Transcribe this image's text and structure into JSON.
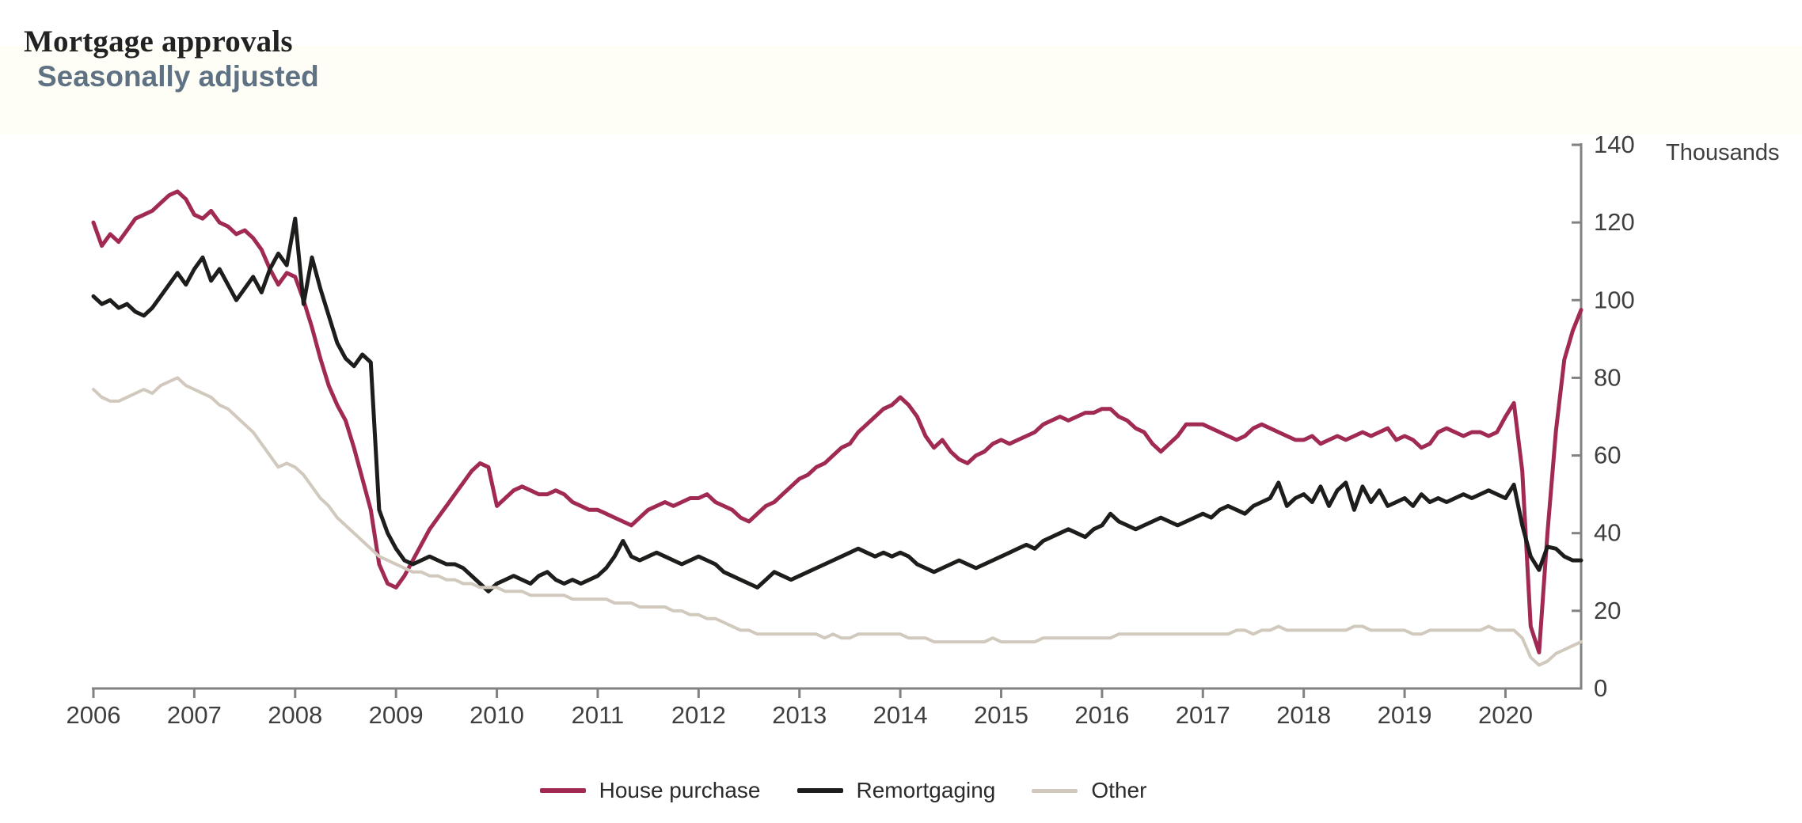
{
  "header": {
    "title": "Mortgage approvals",
    "subtitle": "Seasonally adjusted"
  },
  "chart_data": {
    "type": "line",
    "title": "Mortgage approvals",
    "subtitle": "Seasonally adjusted",
    "unit_label": "Thousands",
    "frequency": "monthly",
    "x_range_start": "2006-01",
    "x_range_end": "2020-10",
    "x_tick_labels": [
      "2006",
      "2007",
      "2008",
      "2009",
      "2010",
      "2011",
      "2012",
      "2013",
      "2014",
      "2015",
      "2016",
      "2017",
      "2018",
      "2019",
      "2020"
    ],
    "y_ticks": [
      0,
      20,
      40,
      60,
      80,
      100,
      120,
      140
    ],
    "ylim": [
      0,
      140
    ],
    "grid": false,
    "legend_position": "bottom",
    "axis_color": "#828282",
    "tick_label_color": "#3f3f3f",
    "series": [
      {
        "name": "House purchase",
        "color": "#a02a54",
        "stroke_width": 5,
        "values": [
          120,
          114,
          117,
          115,
          118,
          121,
          122,
          123,
          125,
          127,
          128,
          126,
          122,
          121,
          123,
          120,
          119,
          117,
          118,
          116,
          113,
          108,
          104,
          107,
          106,
          100,
          93,
          85,
          78,
          73,
          69,
          62,
          54,
          46,
          32,
          27,
          26,
          29,
          33,
          37,
          41,
          44,
          47,
          50,
          53,
          56,
          58,
          57,
          47,
          49,
          51,
          52,
          51,
          50,
          50,
          51,
          50,
          48,
          47,
          46,
          46,
          45,
          44,
          43,
          42,
          44,
          46,
          47,
          48,
          47,
          48,
          49,
          49,
          50,
          48,
          47,
          46,
          44,
          43,
          45,
          47,
          48,
          50,
          52,
          54,
          55,
          57,
          58,
          60,
          62,
          63,
          66,
          68,
          70,
          72,
          73,
          75,
          73,
          70,
          65,
          62,
          64,
          61,
          59,
          58,
          60,
          61,
          63,
          64,
          63,
          64,
          65,
          66,
          68,
          69,
          70,
          69,
          70,
          71,
          71,
          72,
          72,
          70,
          69,
          67,
          66,
          63,
          61,
          63,
          65,
          68,
          68,
          68,
          67,
          66,
          65,
          64,
          65,
          67,
          68,
          67,
          66,
          65,
          64,
          64,
          65,
          63,
          64,
          65,
          64,
          65,
          66,
          65,
          66,
          67,
          64,
          65,
          64,
          62,
          63,
          66,
          67,
          66,
          65,
          66,
          66,
          65,
          66,
          70,
          73.5,
          56,
          16,
          9.3,
          40,
          66.3,
          84.7,
          92.1,
          97.5
        ]
      },
      {
        "name": "Remortgaging",
        "color": "#1d1d1b",
        "stroke_width": 5,
        "values": [
          101,
          99,
          100,
          98,
          99,
          97,
          96,
          98,
          101,
          104,
          107,
          104,
          108,
          111,
          105,
          108,
          104,
          100,
          103,
          106,
          102,
          108,
          112,
          109,
          121,
          99,
          111,
          103,
          96,
          89,
          85,
          83,
          86,
          84,
          46,
          40,
          36,
          33,
          32,
          33,
          34,
          33,
          32,
          32,
          31,
          29,
          27,
          25,
          27,
          28,
          29,
          28,
          27,
          29,
          30,
          28,
          27,
          28,
          27,
          28,
          29,
          31,
          34,
          38,
          34,
          33,
          34,
          35,
          34,
          33,
          32,
          33,
          34,
          33,
          32,
          30,
          29,
          28,
          27,
          26,
          28,
          30,
          29,
          28,
          29,
          30,
          31,
          32,
          33,
          34,
          35,
          36,
          35,
          34,
          35,
          34,
          35,
          34,
          32,
          31,
          30,
          31,
          32,
          33,
          32,
          31,
          32,
          33,
          34,
          35,
          36,
          37,
          36,
          38,
          39,
          40,
          41,
          40,
          39,
          41,
          42,
          45,
          43,
          42,
          41,
          42,
          43,
          44,
          43,
          42,
          43,
          44,
          45,
          44,
          46,
          47,
          46,
          45,
          47,
          48,
          49,
          53,
          47,
          49,
          50,
          48,
          52,
          47,
          51,
          53,
          46,
          52,
          48,
          51,
          47,
          48,
          49,
          47,
          50,
          48,
          49,
          48,
          49,
          50,
          49,
          50,
          51,
          50,
          49,
          52.5,
          42,
          34,
          30.5,
          36.5,
          36,
          34,
          33,
          33
        ]
      },
      {
        "name": "Other",
        "color": "#d1c9bd",
        "stroke_width": 4,
        "values": [
          77,
          75,
          74,
          74,
          75,
          76,
          77,
          76,
          78,
          79,
          80,
          78,
          77,
          76,
          75,
          73,
          72,
          70,
          68,
          66,
          63,
          60,
          57,
          58,
          57,
          55,
          52,
          49,
          47,
          44,
          42,
          40,
          38,
          36,
          34,
          33,
          32,
          31,
          30,
          30,
          29,
          29,
          28,
          28,
          27,
          27,
          26,
          26,
          26,
          25,
          25,
          25,
          24,
          24,
          24,
          24,
          24,
          23,
          23,
          23,
          23,
          23,
          22,
          22,
          22,
          21,
          21,
          21,
          21,
          20,
          20,
          19,
          19,
          18,
          18,
          17,
          16,
          15,
          15,
          14,
          14,
          14,
          14,
          14,
          14,
          14,
          14,
          13,
          14,
          13,
          13,
          14,
          14,
          14,
          14,
          14,
          14,
          13,
          13,
          13,
          12,
          12,
          12,
          12,
          12,
          12,
          12,
          13,
          12,
          12,
          12,
          12,
          12,
          13,
          13,
          13,
          13,
          13,
          13,
          13,
          13,
          13,
          14,
          14,
          14,
          14,
          14,
          14,
          14,
          14,
          14,
          14,
          14,
          14,
          14,
          14,
          15,
          15,
          14,
          15,
          15,
          16,
          15,
          15,
          15,
          15,
          15,
          15,
          15,
          15,
          16,
          16,
          15,
          15,
          15,
          15,
          15,
          14,
          14,
          15,
          15,
          15,
          15,
          15,
          15,
          15,
          16,
          15,
          15,
          15,
          13,
          8,
          6,
          7,
          9,
          10,
          11,
          12
        ]
      }
    ]
  }
}
